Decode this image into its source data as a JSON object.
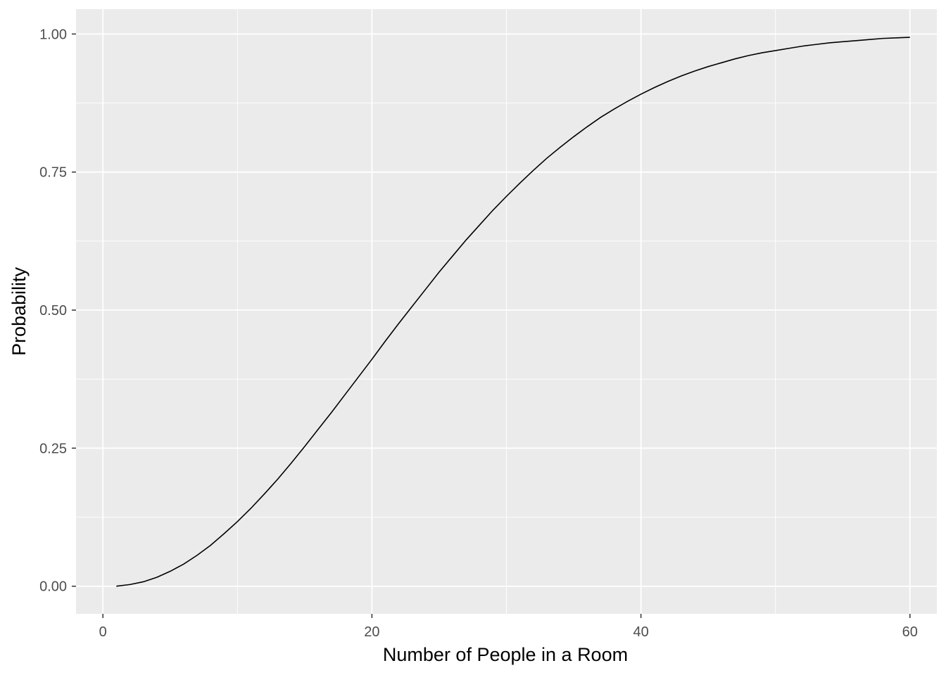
{
  "chart_data": {
    "type": "line",
    "title": "",
    "xlabel": "Number of People in a Room",
    "ylabel": "Probability",
    "xlim": [
      -2,
      62
    ],
    "ylim": [
      -0.05,
      1.045
    ],
    "x_ticks": [
      0,
      20,
      40,
      60
    ],
    "x_tick_labels": [
      "0",
      "20",
      "40",
      "60"
    ],
    "y_ticks": [
      0,
      0.25,
      0.5,
      0.75,
      1
    ],
    "y_tick_labels": [
      "0.00",
      "0.25",
      "0.50",
      "0.75",
      "1.00"
    ],
    "grid": true,
    "legend": "none",
    "colors": {
      "panel": "#ebebeb",
      "grid": "#ffffff",
      "line": "#000000",
      "tick_text": "#4d4d4d"
    },
    "series": [
      {
        "x": [
          1,
          2,
          3,
          4,
          5,
          6,
          7,
          8,
          9,
          10,
          11,
          12,
          13,
          14,
          15,
          16,
          17,
          18,
          19,
          20,
          21,
          22,
          23,
          24,
          25,
          26,
          27,
          28,
          29,
          30,
          31,
          32,
          33,
          34,
          35,
          36,
          37,
          38,
          39,
          40,
          41,
          42,
          43,
          44,
          45,
          46,
          47,
          48,
          49,
          50,
          51,
          52,
          53,
          54,
          55,
          56,
          57,
          58,
          59,
          60
        ],
        "values": [
          0.0,
          0.003,
          0.008,
          0.016,
          0.027,
          0.04,
          0.056,
          0.074,
          0.095,
          0.117,
          0.141,
          0.167,
          0.194,
          0.223,
          0.253,
          0.284,
          0.315,
          0.347,
          0.379,
          0.411,
          0.444,
          0.476,
          0.507,
          0.538,
          0.569,
          0.598,
          0.627,
          0.654,
          0.681,
          0.706,
          0.73,
          0.753,
          0.775,
          0.795,
          0.814,
          0.832,
          0.849,
          0.864,
          0.878,
          0.891,
          0.903,
          0.914,
          0.924,
          0.933,
          0.941,
          0.948,
          0.955,
          0.961,
          0.966,
          0.97,
          0.974,
          0.978,
          0.981,
          0.984,
          0.986,
          0.988,
          0.99,
          0.992,
          0.993,
          0.994
        ]
      }
    ]
  }
}
